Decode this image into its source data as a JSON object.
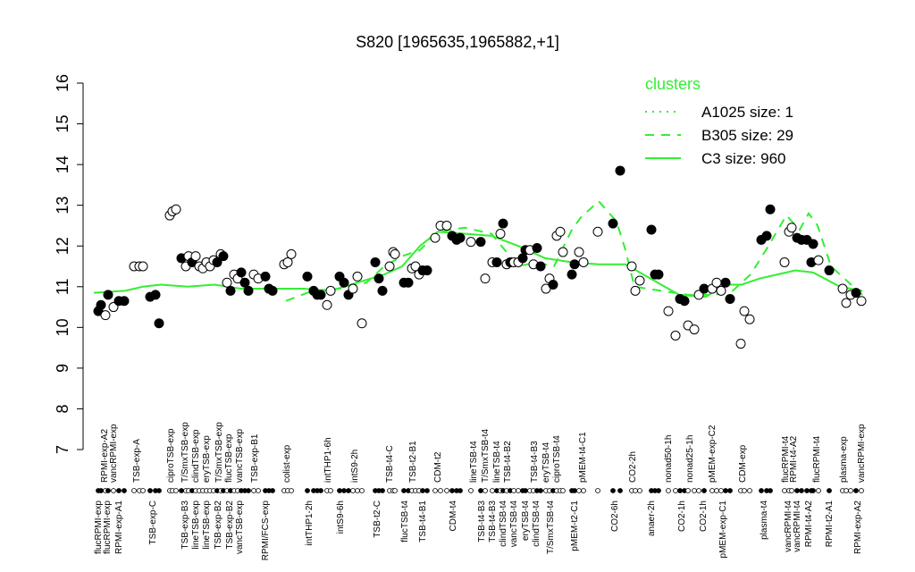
{
  "chart_data": {
    "type": "scatter",
    "title": "S820 [1965635,1965882,+1]",
    "xlim": [
      0,
      875
    ],
    "ylim": [
      7,
      16
    ],
    "yticks": [
      7,
      8,
      9,
      10,
      11,
      12,
      13,
      14,
      15,
      16
    ],
    "points": {
      "x": [
        10,
        13,
        18,
        21,
        27,
        33,
        39,
        50,
        56,
        60,
        68,
        74,
        78,
        90,
        93,
        97,
        103,
        108,
        111,
        115,
        119,
        123,
        127,
        131,
        135,
        139,
        143,
        147,
        150,
        154,
        158,
        162,
        166,
        170,
        174,
        178,
        184,
        189,
        197,
        201,
        205,
        218,
        222,
        226,
        244,
        251,
        255,
        259,
        266,
        270,
        280,
        285,
        290,
        295,
        300,
        305,
        320,
        324,
        328,
        336,
        340,
        342,
        352,
        357,
        361,
        365,
        369,
        373,
        378,
        387,
        393,
        400,
        406,
        411,
        415,
        427,
        438,
        443,
        451,
        456,
        460,
        463,
        467,
        471,
        475,
        480,
        485,
        488,
        493,
        497,
        501,
        505,
        511,
        515,
        519,
        523,
        527,
        530,
        540,
        543,
        548,
        553,
        569,
        586,
        594,
        607,
        611,
        616,
        629,
        633,
        637,
        648,
        656,
        661,
        666,
        670,
        677,
        682,
        688,
        697,
        702,
        707,
        712,
        717,
        729,
        733,
        739,
        752,
        758,
        762,
        778,
        783,
        786,
        792,
        797,
        803,
        808,
        810,
        816,
        828,
        843,
        847,
        852,
        858,
        864
      ],
      "y": [
        10.4,
        10.55,
        10.3,
        10.8,
        10.5,
        10.65,
        10.65,
        11.5,
        11.5,
        11.5,
        10.75,
        10.8,
        10.1,
        12.75,
        12.85,
        12.9,
        11.7,
        11.5,
        11.75,
        11.6,
        11.75,
        11.5,
        11.45,
        11.6,
        11.5,
        11.65,
        11.6,
        11.8,
        11.75,
        11.1,
        10.9,
        11.3,
        11.2,
        11.35,
        11.1,
        10.9,
        11.3,
        11.2,
        11.25,
        10.95,
        10.9,
        11.55,
        11.6,
        11.8,
        11.25,
        10.9,
        10.8,
        10.8,
        10.55,
        10.9,
        11.25,
        11.1,
        10.8,
        10.95,
        11.25,
        10.1,
        11.6,
        11.2,
        10.9,
        11.5,
        11.85,
        11.8,
        11.1,
        11.1,
        11.45,
        11.5,
        11.3,
        11.4,
        11.4,
        12.2,
        12.5,
        12.5,
        12.25,
        12.15,
        12.2,
        12.1,
        12.1,
        11.2,
        11.6,
        11.6,
        12.3,
        12.55,
        11.55,
        11.6,
        11.6,
        11.6,
        11.7,
        11.9,
        11.9,
        11.55,
        11.95,
        11.5,
        10.95,
        11.2,
        11.05,
        12.25,
        12.35,
        11.85,
        11.3,
        11.55,
        11.85,
        11.6,
        12.35,
        12.55,
        13.85,
        11.5,
        10.9,
        11.15,
        12.4,
        11.3,
        11.3,
        10.4,
        9.8,
        10.7,
        10.65,
        10.05,
        9.95,
        10.8,
        10.95,
        10.95,
        11.1,
        10.9,
        11.1,
        10.7,
        9.6,
        10.4,
        10.2,
        12.15,
        12.25,
        12.9,
        11.6,
        12.35,
        12.45,
        12.2,
        12.15,
        12.15,
        11.6,
        12.05,
        11.65,
        11.4,
        10.95,
        10.6,
        10.8,
        10.85,
        10.65
      ],
      "filled": [
        true,
        true,
        false,
        true,
        false,
        true,
        true,
        false,
        false,
        false,
        true,
        true,
        true,
        false,
        false,
        false,
        true,
        false,
        false,
        true,
        false,
        false,
        false,
        false,
        false,
        false,
        true,
        false,
        true,
        false,
        true,
        false,
        false,
        true,
        true,
        true,
        false,
        false,
        true,
        true,
        true,
        false,
        false,
        false,
        true,
        true,
        true,
        true,
        false,
        false,
        true,
        true,
        true,
        false,
        false,
        false,
        true,
        true,
        true,
        false,
        false,
        false,
        true,
        true,
        false,
        false,
        false,
        true,
        true,
        false,
        false,
        false,
        true,
        true,
        true,
        false,
        true,
        false,
        false,
        true,
        false,
        true,
        false,
        true,
        false,
        false,
        true,
        true,
        false,
        false,
        true,
        true,
        false,
        false,
        true,
        false,
        false,
        false,
        true,
        true,
        false,
        false,
        false,
        true,
        true,
        false,
        false,
        false,
        true,
        true,
        true,
        false,
        false,
        true,
        true,
        false,
        false,
        false,
        true,
        false,
        false,
        false,
        true,
        true,
        false,
        false,
        false,
        true,
        true,
        true,
        false,
        false,
        false,
        true,
        true,
        true,
        true,
        true,
        false,
        true,
        false,
        false,
        false,
        true,
        false
      ]
    },
    "legend_title": "clusters",
    "series": [
      {
        "name": "A1025 size: 1",
        "color": "#33ee33",
        "style": "dotted"
      },
      {
        "name": "B305 size: 29",
        "color": "#33ee33",
        "style": "dashed",
        "x": [
          220,
          250,
          280,
          310,
          330,
          350,
          370,
          390,
          420,
          450,
          480,
          500,
          520,
          540,
          550,
          570,
          590,
          600,
          610,
          640,
          670,
          700,
          720,
          740,
          760,
          780,
          795,
          805,
          815,
          830,
          850,
          865
        ],
        "values": [
          10.65,
          10.9,
          10.95,
          11.1,
          11.5,
          11.75,
          11.9,
          12.35,
          12.45,
          12.3,
          11.5,
          11.6,
          11.5,
          12.4,
          12.7,
          13.1,
          12.6,
          11.9,
          11.0,
          10.9,
          10.8,
          10.8,
          10.9,
          11.3,
          12.0,
          12.75,
          12.4,
          12.8,
          12.5,
          11.5,
          11.1,
          10.8
        ]
      },
      {
        "name": "C3 size: 960",
        "color": "#33ee33",
        "style": "solid",
        "x": [
          5,
          40,
          60,
          80,
          110,
          140,
          170,
          200,
          240,
          270,
          300,
          330,
          350,
          370,
          390,
          420,
          450,
          480,
          510,
          540,
          570,
          600,
          620,
          640,
          660,
          690,
          710,
          730,
          750,
          770,
          790,
          810,
          840,
          865
        ],
        "values": [
          10.85,
          10.9,
          11.0,
          11.05,
          11.0,
          11.05,
          10.95,
          10.95,
          10.95,
          10.9,
          11.1,
          11.3,
          11.5,
          12.0,
          12.35,
          12.3,
          12.25,
          12.0,
          11.7,
          11.6,
          11.55,
          11.55,
          11.3,
          11.05,
          10.8,
          10.75,
          11.05,
          11.05,
          11.2,
          11.3,
          11.4,
          11.35,
          11.0,
          10.9
        ]
      }
    ],
    "x_labels_top": {
      "labels": [
        "RPMI-exp-A2",
        "vancRPMI-exp",
        "TSB-exp-A",
        "ciproTSB-exp",
        "T/SmxTSB-exp",
        "clindTSB-exp",
        "eryTSB-exp",
        "T/SmxTSB-exp",
        "flucTSB-exp",
        "vancTSB-exp",
        "TSB-exp-B1",
        "colist-exp",
        "intTHP1-6h",
        "intS9-2h",
        "TSB-t4-C",
        "TSB-t2-B1",
        "CDM-t2",
        "lineTSB-t4",
        "T/SmxTSB-t4",
        "lineTSB-t4",
        "TSB-t4-B2",
        "TSB-t4-B3",
        "eryTSB-t4",
        "ciproTSB-t4",
        "pMEM-t4-C1",
        "CO2-2h",
        "nonad50-1h",
        "nonad25-1h",
        "pMEM-exp-C2",
        "CDM-exp",
        "flucRPMI-t4",
        "RPMI-t4-A2",
        "flucRPMI-t4",
        "plasma-exp",
        "vancRPMI-exp"
      ],
      "x": [
        17,
        27,
        53,
        91,
        107,
        119,
        131,
        145,
        156,
        168,
        185,
        221,
        267,
        297,
        336,
        362,
        390,
        430,
        443,
        456,
        468,
        498,
        511,
        523,
        552,
        608,
        648,
        672,
        697,
        731,
        779,
        788,
        814,
        844,
        864
      ]
    },
    "x_labels_bottom": {
      "labels": [
        "flucRPMI-exp",
        "flucRPMI-exp",
        "RPMI-exp-A1",
        "TSB-exp-C",
        "TSB-exp-B3",
        "lineTSB-exp",
        "lineTSB-exp",
        "TSB-exp-B2",
        "TSB-exp-B2",
        "vancTSB-exp",
        "RPMI/FCS-exp",
        "intTHP1-2h",
        "intS9-6h",
        "TSB-t2-C",
        "flucTSB-t4",
        "TSB-t4-B1",
        "CDM-t4",
        "TSB-t4-B3",
        "TSB-t4-B3",
        "clindTSB-t4",
        "vancTSB-t4",
        "eryTSB-t4",
        "clindTSB-t4",
        "T/SmxTSB-t4",
        "pMEM-t2-C1",
        "CO2-6h",
        "anaer-2h",
        "CO2-1h",
        "CO2-1h",
        "pMEM-exp-C1",
        "plasma-t4",
        "vancRPMI-t4",
        "vancRPMI-t4",
        "RPMI-t4-A2",
        "RPMI-t2-A1",
        "RPMI-exp-A2"
      ],
      "x": [
        10,
        20,
        33,
        71,
        107,
        119,
        131,
        144,
        157,
        168,
        197,
        246,
        281,
        322,
        353,
        373,
        407,
        439,
        451,
        463,
        475,
        488,
        500,
        516,
        543,
        588,
        629,
        663,
        687,
        709,
        755,
        782,
        792,
        805,
        828,
        860
      ]
    }
  }
}
